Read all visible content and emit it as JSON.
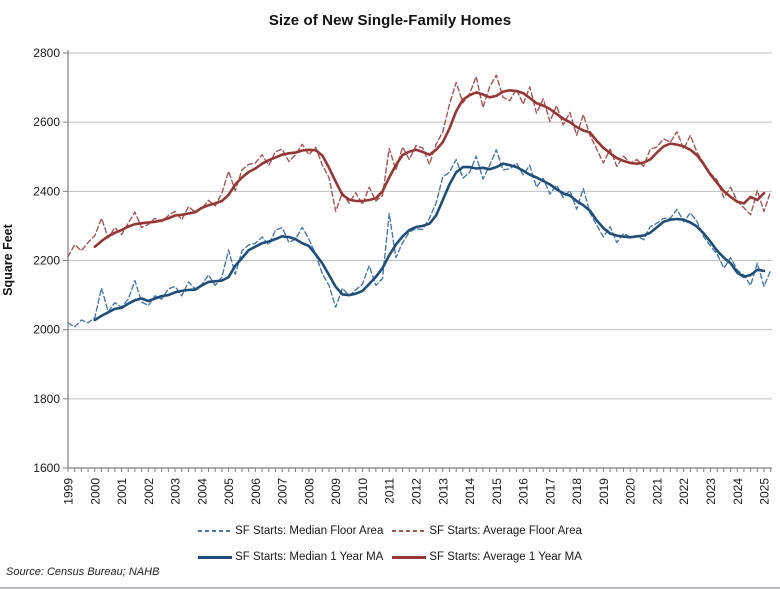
{
  "title": "Size of New Single-Family Homes",
  "source_note": "Source: Census Bureau; NAHB",
  "colors": {
    "median_dashed": "#4a78a8",
    "average_dashed": "#a65454",
    "median_solid": "#1f4e79",
    "average_solid": "#943735",
    "gridline": "#bfbfbf",
    "axis": "#808080",
    "text": "#1a1a1a"
  },
  "y_axis": {
    "label": "Square Feet",
    "ticks": [
      1600,
      1800,
      2000,
      2200,
      2400,
      2600,
      2800
    ]
  },
  "x_axis": {
    "years": [
      1999,
      2000,
      2001,
      2002,
      2003,
      2004,
      2005,
      2006,
      2007,
      2008,
      2009,
      2010,
      2011,
      2012,
      2013,
      2014,
      2015,
      2016,
      2017,
      2018,
      2019,
      2020,
      2021,
      2022,
      2023,
      2024,
      2025
    ]
  },
  "legend": {
    "row1": [
      "SF Starts: Median Floor Area",
      "SF Starts: Average Floor Area"
    ],
    "row2": [
      "SF Starts: Median 1 Year MA",
      "SF Starts: Average 1 Year MA"
    ]
  },
  "chart_data": {
    "type": "line",
    "title": "Size of New Single-Family Homes",
    "xlabel": "",
    "ylabel": "Square Feet",
    "ylim": [
      1600,
      2800
    ],
    "xlim": [
      1999,
      2025.5
    ],
    "x_unit": "year (quarterly points)",
    "grid": "horizontal",
    "legend_position": "bottom",
    "series": [
      {
        "name": "SF Starts: Median Floor Area",
        "style": "dashed",
        "color": "#4a78a8",
        "width": 1.4,
        "x_start": 1999.0,
        "x_step": 0.25,
        "values": [
          2020,
          2008,
          2028,
          2020,
          2035,
          2120,
          2052,
          2078,
          2065,
          2088,
          2142,
          2080,
          2070,
          2098,
          2088,
          2118,
          2125,
          2098,
          2138,
          2118,
          2130,
          2158,
          2128,
          2152,
          2230,
          2160,
          2228,
          2245,
          2250,
          2268,
          2245,
          2288,
          2295,
          2252,
          2262,
          2296,
          2262,
          2218,
          2162,
          2128,
          2065,
          2120,
          2098,
          2115,
          2132,
          2185,
          2128,
          2148,
          2336,
          2208,
          2252,
          2282,
          2292,
          2290,
          2322,
          2366,
          2442,
          2455,
          2492,
          2438,
          2455,
          2502,
          2436,
          2475,
          2520,
          2462,
          2465,
          2482,
          2448,
          2475,
          2412,
          2438,
          2392,
          2418,
          2382,
          2402,
          2348,
          2408,
          2338,
          2302,
          2268,
          2298,
          2252,
          2278,
          2268,
          2272,
          2260,
          2298,
          2308,
          2322,
          2322,
          2348,
          2312,
          2338,
          2312,
          2268,
          2242,
          2218,
          2178,
          2208,
          2172,
          2158,
          2128,
          2192,
          2125,
          2172
        ]
      },
      {
        "name": "SF Starts: Average Floor Area",
        "style": "dashed",
        "color": "#a65454",
        "width": 1.4,
        "x_start": 1999.0,
        "x_step": 0.25,
        "values": [
          2211,
          2246,
          2228,
          2252,
          2272,
          2322,
          2265,
          2295,
          2275,
          2308,
          2340,
          2296,
          2304,
          2322,
          2312,
          2330,
          2342,
          2318,
          2356,
          2340,
          2350,
          2374,
          2358,
          2395,
          2458,
          2402,
          2462,
          2478,
          2482,
          2506,
          2475,
          2515,
          2522,
          2486,
          2506,
          2536,
          2506,
          2528,
          2476,
          2440,
          2342,
          2396,
          2366,
          2396,
          2362,
          2412,
          2372,
          2388,
          2524,
          2462,
          2528,
          2492,
          2532,
          2526,
          2478,
          2536,
          2572,
          2652,
          2715,
          2656,
          2682,
          2732,
          2642,
          2702,
          2736,
          2672,
          2662,
          2696,
          2652,
          2702,
          2626,
          2668,
          2602,
          2648,
          2592,
          2628,
          2562,
          2622,
          2562,
          2522,
          2482,
          2522,
          2472,
          2502,
          2482,
          2492,
          2472,
          2522,
          2528,
          2552,
          2542,
          2572,
          2522,
          2562,
          2512,
          2482,
          2452,
          2432,
          2382,
          2412,
          2372,
          2352,
          2332,
          2402,
          2342,
          2400
        ]
      },
      {
        "name": "SF Starts: Median 1 Year MA",
        "style": "solid",
        "color": "#1f4e79",
        "width": 2.6,
        "x_start": 2000.0,
        "x_step": 0.25,
        "values": [
          2028,
          2040,
          2050,
          2060,
          2063,
          2075,
          2085,
          2090,
          2083,
          2090,
          2097,
          2100,
          2108,
          2112,
          2115,
          2116,
          2128,
          2138,
          2140,
          2142,
          2152,
          2185,
          2207,
          2230,
          2240,
          2250,
          2255,
          2262,
          2270,
          2268,
          2262,
          2250,
          2242,
          2218,
          2192,
          2158,
          2124,
          2102,
          2100,
          2104,
          2112,
          2132,
          2153,
          2178,
          2215,
          2246,
          2270,
          2288,
          2297,
          2300,
          2306,
          2330,
          2375,
          2420,
          2455,
          2470,
          2470,
          2466,
          2468,
          2464,
          2470,
          2480,
          2476,
          2470,
          2460,
          2448,
          2440,
          2430,
          2420,
          2406,
          2394,
          2388,
          2372,
          2360,
          2344,
          2316,
          2294,
          2278,
          2272,
          2269,
          2267,
          2270,
          2272,
          2280,
          2296,
          2312,
          2318,
          2320,
          2318,
          2310,
          2298,
          2278,
          2254,
          2228,
          2208,
          2192,
          2165,
          2153,
          2158,
          2173,
          2170
        ]
      },
      {
        "name": "SF Starts: Average 1 Year MA",
        "style": "solid",
        "color": "#943735",
        "width": 2.6,
        "x_start": 2000.0,
        "x_step": 0.25,
        "values": [
          2240,
          2256,
          2270,
          2280,
          2288,
          2298,
          2305,
          2308,
          2310,
          2312,
          2316,
          2322,
          2330,
          2332,
          2336,
          2340,
          2352,
          2360,
          2365,
          2372,
          2390,
          2420,
          2440,
          2456,
          2466,
          2480,
          2490,
          2498,
          2506,
          2510,
          2512,
          2518,
          2520,
          2519,
          2504,
          2468,
          2428,
          2390,
          2376,
          2372,
          2372,
          2375,
          2380,
          2400,
          2440,
          2476,
          2505,
          2515,
          2520,
          2514,
          2506,
          2520,
          2542,
          2582,
          2632,
          2665,
          2678,
          2686,
          2680,
          2672,
          2676,
          2688,
          2692,
          2690,
          2684,
          2670,
          2655,
          2648,
          2638,
          2624,
          2610,
          2600,
          2586,
          2576,
          2570,
          2546,
          2526,
          2510,
          2496,
          2488,
          2482,
          2480,
          2483,
          2492,
          2512,
          2530,
          2538,
          2535,
          2530,
          2520,
          2504,
          2478,
          2448,
          2424,
          2400,
          2384,
          2370,
          2365,
          2384,
          2375,
          2395
        ]
      }
    ]
  }
}
